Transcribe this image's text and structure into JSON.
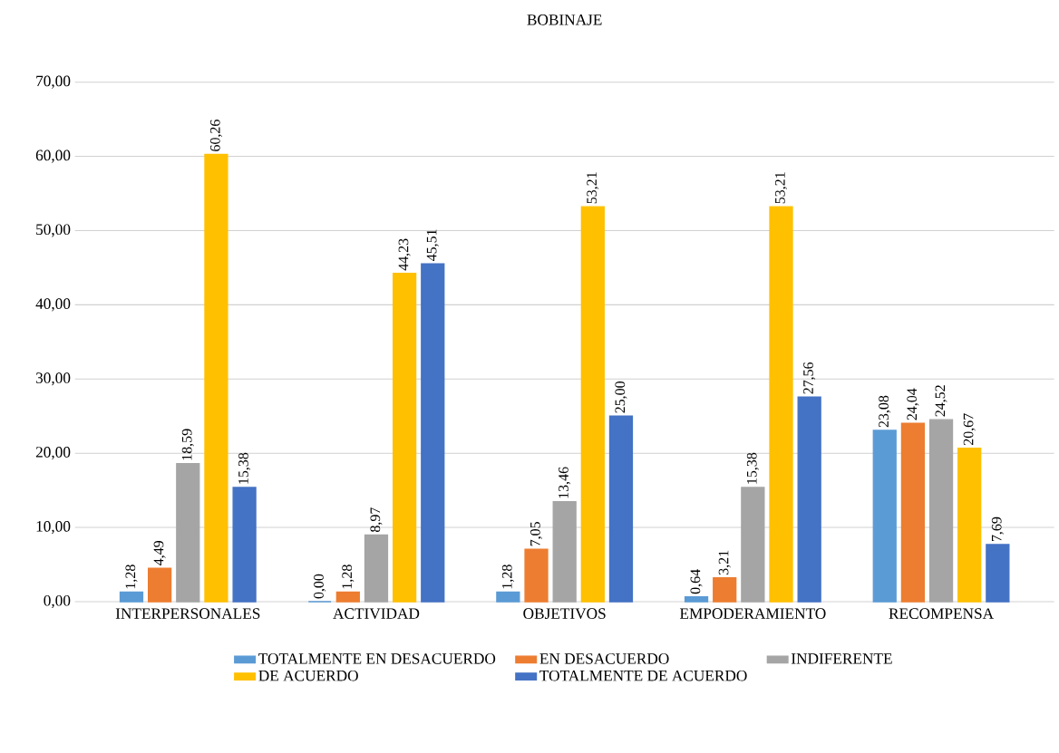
{
  "chart_data": {
    "type": "bar",
    "title": "BOBINAJE",
    "categories": [
      "INTERPERSONALES",
      "ACTIVIDAD",
      "OBJETIVOS",
      "EMPODERAMIENTO",
      "RECOMPENSA"
    ],
    "series": [
      {
        "name": "TOTALMENTE EN DESACUERDO",
        "color": "#5b9bd5",
        "values": [
          1.28,
          0.0,
          1.28,
          0.64,
          23.08
        ],
        "value_labels": [
          "1,28",
          "0,00",
          "1,28",
          "0,64",
          "23,08"
        ]
      },
      {
        "name": "EN DESACUERDO",
        "color": "#ed7d31",
        "values": [
          4.49,
          1.28,
          7.05,
          3.21,
          24.04
        ],
        "value_labels": [
          "4,49",
          "1,28",
          "7,05",
          "3,21",
          "24,04"
        ]
      },
      {
        "name": "INDIFERENTE",
        "color": "#a5a5a5",
        "values": [
          18.59,
          8.97,
          13.46,
          15.38,
          24.52
        ],
        "value_labels": [
          "18,59",
          "8,97",
          "13,46",
          "15,38",
          "24,52"
        ]
      },
      {
        "name": "DE ACUERDO",
        "color": "#ffc000",
        "values": [
          60.26,
          44.23,
          53.21,
          53.21,
          20.67
        ],
        "value_labels": [
          "60,26",
          "44,23",
          "53,21",
          "53,21",
          "20,67"
        ]
      },
      {
        "name": "TOTALMENTE DE ACUERDO",
        "color": "#4472c4",
        "values": [
          15.38,
          45.51,
          25.0,
          27.56,
          7.69
        ],
        "value_labels": [
          "15,38",
          "45,51",
          "25,00",
          "27,56",
          "7,69"
        ]
      }
    ],
    "ylim": [
      0,
      70
    ],
    "yticks": [
      {
        "value": 0,
        "label": "0,00"
      },
      {
        "value": 10,
        "label": "10,00"
      },
      {
        "value": 20,
        "label": "20,00"
      },
      {
        "value": 30,
        "label": "30,00"
      },
      {
        "value": 40,
        "label": "40,00"
      },
      {
        "value": 50,
        "label": "50,00"
      },
      {
        "value": 60,
        "label": "60,00"
      },
      {
        "value": 70,
        "label": "70,00"
      }
    ],
    "grid": "y",
    "legend": "bottom"
  }
}
